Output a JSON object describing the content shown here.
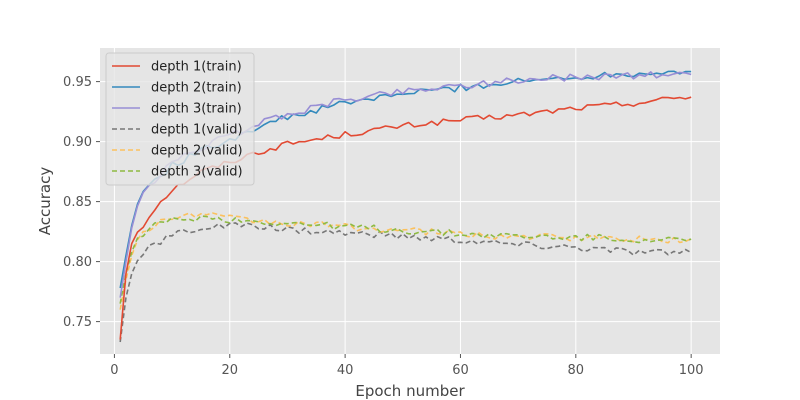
{
  "chart_data": {
    "type": "line",
    "title": "",
    "xlabel": "Epoch number",
    "ylabel": "Accuracy",
    "xlim": [
      -2.5,
      105
    ],
    "ylim": [
      0.723,
      0.978
    ],
    "xticks": [
      0,
      20,
      40,
      60,
      80,
      100
    ],
    "yticks": [
      0.75,
      0.8,
      0.85,
      0.9,
      0.95
    ],
    "xtick_labels": [
      "0",
      "20",
      "40",
      "60",
      "80",
      "100"
    ],
    "ytick_labels": [
      "0.75",
      "0.80",
      "0.85",
      "0.90",
      "0.95"
    ],
    "grid": true,
    "legend_position": "upper-left",
    "series": [
      {
        "name": "depth 1(train)",
        "color": "#e24a33",
        "dash": "solid",
        "keypoints": [
          [
            1,
            0.735
          ],
          [
            2,
            0.79
          ],
          [
            3,
            0.815
          ],
          [
            4,
            0.825
          ],
          [
            5,
            0.83
          ],
          [
            6,
            0.838
          ],
          [
            7,
            0.845
          ],
          [
            8,
            0.85
          ],
          [
            9,
            0.855
          ],
          [
            10,
            0.86
          ],
          [
            12,
            0.866
          ],
          [
            15,
            0.875
          ],
          [
            20,
            0.883
          ],
          [
            24,
            0.89
          ],
          [
            30,
            0.898
          ],
          [
            40,
            0.906
          ],
          [
            50,
            0.913
          ],
          [
            60,
            0.918
          ],
          [
            70,
            0.922
          ],
          [
            80,
            0.928
          ],
          [
            90,
            0.932
          ],
          [
            100,
            0.938
          ]
        ],
        "noise": 0.0025
      },
      {
        "name": "depth 2(train)",
        "color": "#348abd",
        "dash": "solid",
        "keypoints": [
          [
            1,
            0.778
          ],
          [
            2,
            0.805
          ],
          [
            3,
            0.83
          ],
          [
            4,
            0.848
          ],
          [
            5,
            0.858
          ],
          [
            6,
            0.864
          ],
          [
            8,
            0.872
          ],
          [
            10,
            0.88
          ],
          [
            14,
            0.89
          ],
          [
            20,
            0.902
          ],
          [
            25,
            0.913
          ],
          [
            30,
            0.92
          ],
          [
            40,
            0.932
          ],
          [
            50,
            0.94
          ],
          [
            60,
            0.945
          ],
          [
            70,
            0.95
          ],
          [
            80,
            0.954
          ],
          [
            90,
            0.957
          ],
          [
            100,
            0.959
          ]
        ],
        "noise": 0.003
      },
      {
        "name": "depth 3(train)",
        "color": "#988ed5",
        "dash": "solid",
        "keypoints": [
          [
            1,
            0.77
          ],
          [
            2,
            0.8
          ],
          [
            3,
            0.828
          ],
          [
            4,
            0.846
          ],
          [
            5,
            0.855
          ],
          [
            6,
            0.862
          ],
          [
            8,
            0.873
          ],
          [
            10,
            0.882
          ],
          [
            14,
            0.893
          ],
          [
            20,
            0.905
          ],
          [
            25,
            0.915
          ],
          [
            30,
            0.923
          ],
          [
            40,
            0.935
          ],
          [
            50,
            0.942
          ],
          [
            60,
            0.947
          ],
          [
            70,
            0.951
          ],
          [
            80,
            0.954
          ],
          [
            90,
            0.955
          ],
          [
            100,
            0.956
          ]
        ],
        "noise": 0.003
      },
      {
        "name": "depth 1(valid)",
        "color": "#777777",
        "dash": "dashed",
        "keypoints": [
          [
            1,
            0.733
          ],
          [
            2,
            0.77
          ],
          [
            3,
            0.79
          ],
          [
            4,
            0.8
          ],
          [
            5,
            0.807
          ],
          [
            7,
            0.814
          ],
          [
            9,
            0.82
          ],
          [
            12,
            0.825
          ],
          [
            15,
            0.828
          ],
          [
            20,
            0.83
          ],
          [
            30,
            0.827
          ],
          [
            40,
            0.824
          ],
          [
            50,
            0.821
          ],
          [
            60,
            0.818
          ],
          [
            70,
            0.814
          ],
          [
            80,
            0.812
          ],
          [
            90,
            0.808
          ],
          [
            100,
            0.807
          ]
        ],
        "noise": 0.003
      },
      {
        "name": "depth 2(valid)",
        "color": "#fbc15e",
        "dash": "dashed",
        "keypoints": [
          [
            1,
            0.76
          ],
          [
            2,
            0.785
          ],
          [
            3,
            0.805
          ],
          [
            4,
            0.817
          ],
          [
            5,
            0.824
          ],
          [
            7,
            0.83
          ],
          [
            10,
            0.837
          ],
          [
            15,
            0.84
          ],
          [
            20,
            0.836
          ],
          [
            30,
            0.832
          ],
          [
            40,
            0.829
          ],
          [
            50,
            0.826
          ],
          [
            60,
            0.823
          ],
          [
            70,
            0.821
          ],
          [
            80,
            0.82
          ],
          [
            90,
            0.819
          ],
          [
            100,
            0.818
          ]
        ],
        "noise": 0.003
      },
      {
        "name": "depth 3(valid)",
        "color": "#8eba42",
        "dash": "dashed",
        "keypoints": [
          [
            1,
            0.765
          ],
          [
            2,
            0.79
          ],
          [
            3,
            0.808
          ],
          [
            4,
            0.818
          ],
          [
            5,
            0.824
          ],
          [
            7,
            0.83
          ],
          [
            10,
            0.834
          ],
          [
            15,
            0.837
          ],
          [
            20,
            0.835
          ],
          [
            30,
            0.832
          ],
          [
            40,
            0.829
          ],
          [
            50,
            0.826
          ],
          [
            60,
            0.823
          ],
          [
            70,
            0.821
          ],
          [
            80,
            0.82
          ],
          [
            90,
            0.819
          ],
          [
            100,
            0.817
          ]
        ],
        "noise": 0.003
      }
    ]
  }
}
